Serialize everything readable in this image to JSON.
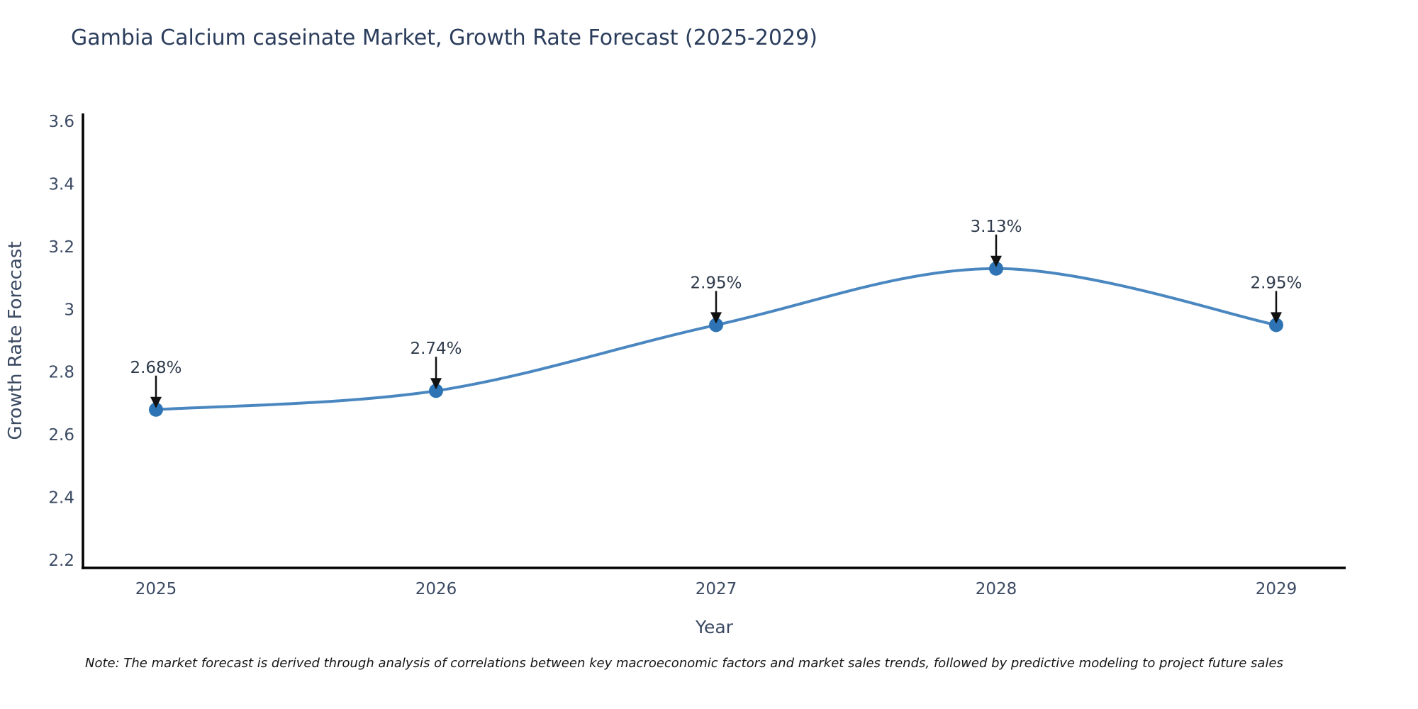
{
  "chart_data": {
    "type": "line",
    "title": "Gambia Calcium caseinate Market, Growth Rate Forecast (2025-2029)",
    "xlabel": "Year",
    "ylabel": "Growth Rate Forecast",
    "categories": [
      "2025",
      "2026",
      "2027",
      "2028",
      "2029"
    ],
    "series": [
      {
        "name": "Growth Rate Forecast",
        "values": [
          2.68,
          2.74,
          2.95,
          3.13,
          2.95
        ],
        "point_labels": [
          "2.68%",
          "2.74%",
          "2.95%",
          "3.13%",
          "2.95%"
        ]
      }
    ],
    "ylim": [
      2.2,
      3.6
    ],
    "ytick_labels": [
      "3.6",
      "3.4",
      "3.2",
      "3",
      "2.8",
      "2.6",
      "2.4",
      "2.2"
    ],
    "ytick_values": [
      3.6,
      3.4,
      3.2,
      3.0,
      2.8,
      2.6,
      2.4,
      2.2
    ],
    "grid": false,
    "legend": "none",
    "line_shape": "spline",
    "annotations_have_arrows": true,
    "colors": {
      "line": "#4a87c0",
      "marker": "#2e74b5",
      "axis": "#000000",
      "title": "#2b3d5c",
      "tick": "#3b4a63",
      "annotation_text": "#2f3b4c",
      "arrow": "#111111"
    }
  },
  "note": "Note: The market forecast is derived through analysis of correlations between key macroeconomic factors and market sales trends, followed by predictive modeling to project future sales"
}
